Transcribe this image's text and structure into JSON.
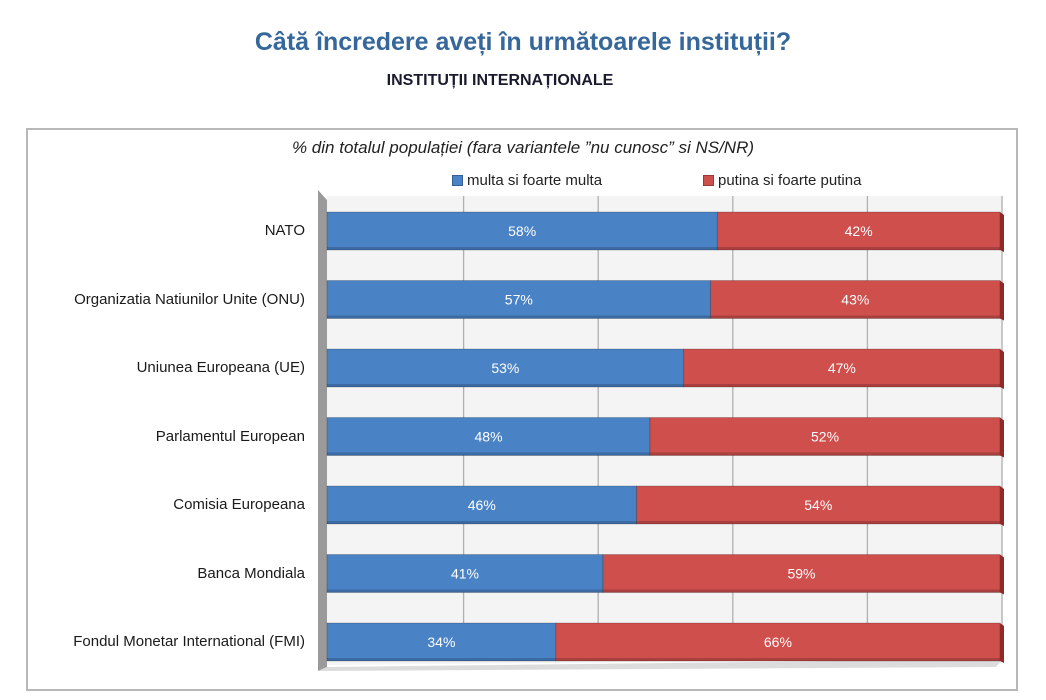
{
  "header": {
    "title": "Câtă încredere aveți în următoarele instituții?",
    "subtitle": "INSTITUȚII INTERNAȚIONALE"
  },
  "chart_data": {
    "type": "bar",
    "orientation": "horizontal",
    "stacked": true,
    "percent_stacked": true,
    "title": "% din totalul populației (fara variantele ”nu cunosc” si NS/NR)",
    "xlabel": "",
    "ylabel": "",
    "xlim": [
      0,
      100
    ],
    "grid": true,
    "legend_position": "top",
    "categories": [
      "NATO",
      "Organizatia Natiunilor Unite (ONU)",
      "Uniunea Europeana (UE)",
      "Parlamentul European",
      "Comisia Europeana",
      "Banca Mondiala",
      "Fondul Monetar International (FMI)"
    ],
    "series": [
      {
        "name": "multa si foarte multa",
        "color": "#4a82c6",
        "values": [
          58,
          57,
          53,
          48,
          46,
          41,
          34
        ],
        "labels": [
          "58%",
          "57%",
          "53%",
          "48%",
          "46%",
          "41%",
          "34%"
        ]
      },
      {
        "name": "putina si foarte putina",
        "color": "#cf4f4d",
        "values": [
          42,
          43,
          47,
          52,
          54,
          59,
          66
        ],
        "labels": [
          "42%",
          "43%",
          "47%",
          "52%",
          "54%",
          "59%",
          "66%"
        ]
      }
    ]
  }
}
